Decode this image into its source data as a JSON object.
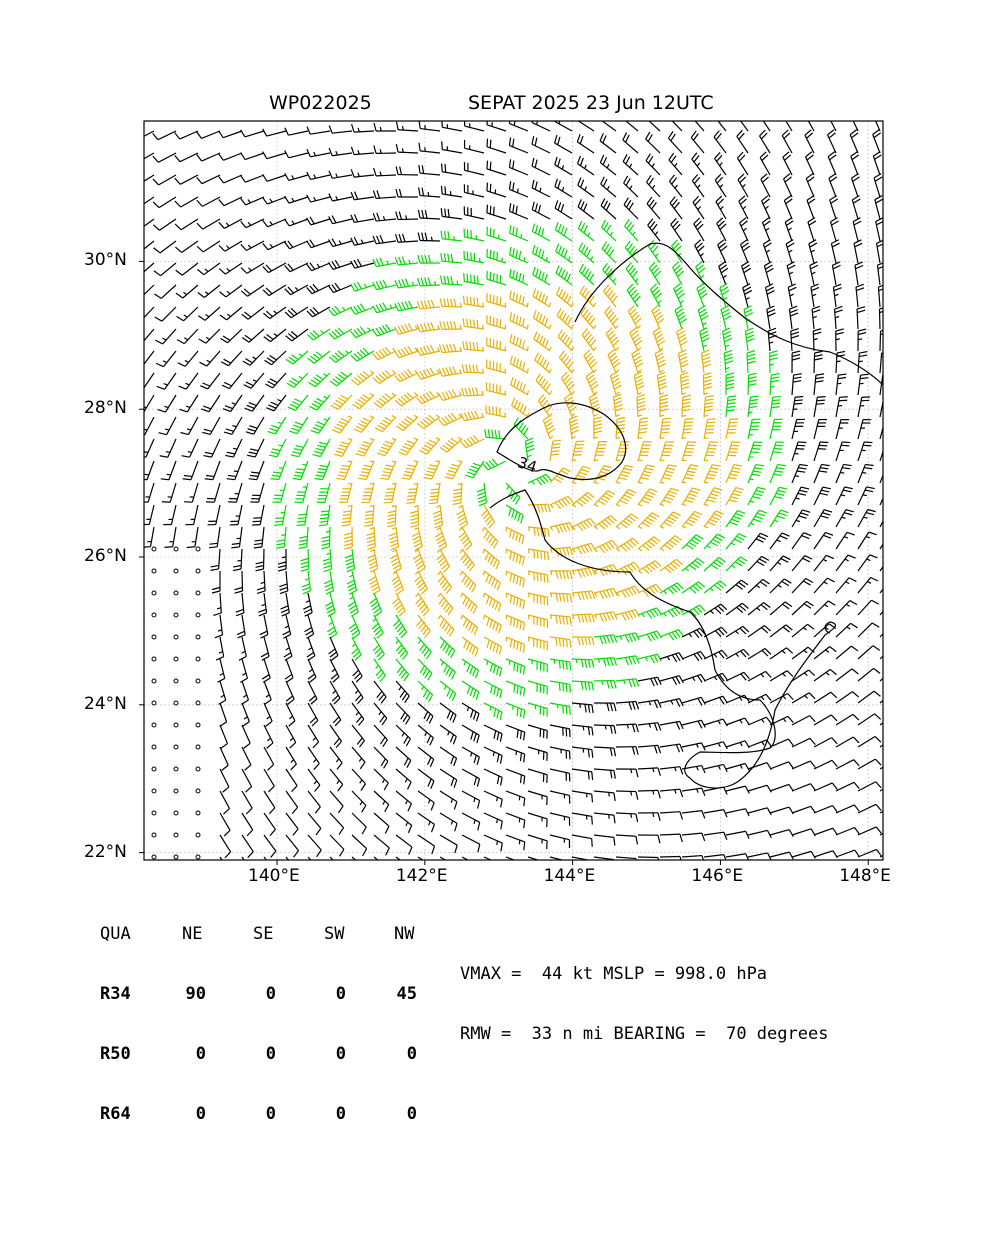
{
  "title": {
    "storm_id": "WP022025",
    "name_time": "SEPAT 2025 23 Jun 12UTC"
  },
  "map": {
    "lon_range": [
      138.0,
      148.0
    ],
    "lat_range": [
      22.0,
      32.0
    ],
    "lat_ticks": [
      {
        "value": 22,
        "label": "22°N"
      },
      {
        "value": 24,
        "label": "24°N"
      },
      {
        "value": 26,
        "label": "26°N"
      },
      {
        "value": 28,
        "label": "28°N"
      },
      {
        "value": 30,
        "label": "30°N"
      }
    ],
    "lon_ticks": [
      {
        "value": 140,
        "label": "140°E"
      },
      {
        "value": 142,
        "label": "142°E"
      },
      {
        "value": 144,
        "label": "144°E"
      },
      {
        "value": 146,
        "label": "146°E"
      },
      {
        "value": 148,
        "label": "148°E"
      }
    ],
    "grid": true,
    "storm_center": {
      "lon": 143.2,
      "lat": 27.2
    },
    "contour_label": "34",
    "wind_colors": {
      "below_34": "#000000",
      "r34": "#00dd00",
      "r50": "#e8b000"
    }
  },
  "radii_table": {
    "headers": [
      "QUA",
      "NE",
      "SE",
      "SW",
      "NW"
    ],
    "rows": [
      {
        "label": "R34",
        "values": [
          "90",
          "0",
          "0",
          "45"
        ]
      },
      {
        "label": "R50",
        "values": [
          "0",
          "0",
          "0",
          "0"
        ]
      },
      {
        "label": "R64",
        "values": [
          "0",
          "0",
          "0",
          "0"
        ]
      }
    ]
  },
  "stats": {
    "line1": "VMAX =  44 kt MSLP = 998.0 hPa",
    "line2": "RMW =  33 n mi BEARING =  70 degrees"
  }
}
